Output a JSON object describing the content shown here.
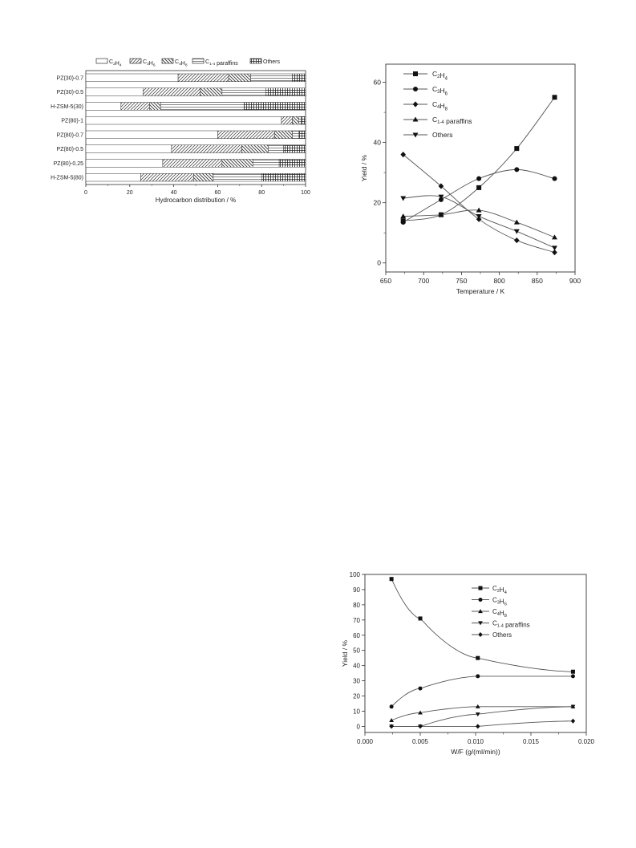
{
  "chart_data": [
    {
      "type": "bar",
      "stacked": true,
      "orientation": "horizontal",
      "categories": [
        "PZ(30)-0.7",
        "PZ(30)-0.5",
        "H-ZSM-5(30)",
        "PZ(80)-1",
        "PZ(80)-0.7",
        "PZ(80)-0.5",
        "PZ(80)-0.25",
        "H-ZSM-5(80)"
      ],
      "series": [
        {
          "name": "C2H4",
          "values": [
            42,
            26,
            16,
            89,
            60,
            39,
            35,
            25
          ]
        },
        {
          "name": "C3H6",
          "values": [
            23,
            26,
            13,
            5,
            26,
            32,
            27,
            24
          ]
        },
        {
          "name": "C4H8",
          "values": [
            10,
            10,
            5,
            3,
            8,
            12,
            14,
            9
          ]
        },
        {
          "name": "C1-4 paraffins",
          "values": [
            19,
            20,
            38,
            1,
            3,
            7,
            12,
            22
          ]
        },
        {
          "name": "Others",
          "values": [
            6,
            18,
            28,
            2,
            3,
            10,
            12,
            20
          ]
        }
      ],
      "legend_labels": [
        {
          "main": "C",
          "sub": "2",
          "mid": "H",
          "sub2": "4"
        },
        {
          "main": "C",
          "sub": "3",
          "mid": "H",
          "sub2": "6"
        },
        {
          "main": "C",
          "sub": "4",
          "mid": "H",
          "sub2": "8"
        },
        {
          "main": "C",
          "sub": "1-4",
          "mid": " paraffins",
          "sub2": ""
        },
        {
          "main": "Others",
          "sub": "",
          "mid": "",
          "sub2": ""
        }
      ],
      "xlabel": "Hydrocarbon  distribution / %",
      "xlim": [
        0,
        100
      ],
      "xticks": [
        "0",
        "20",
        "40",
        "60",
        "80",
        "100"
      ],
      "legend_position": "top"
    },
    {
      "type": "line",
      "x": [
        673,
        723,
        773,
        823,
        873
      ],
      "series": [
        {
          "name": "C2H4",
          "marker": "square",
          "values": [
            14,
            16,
            25,
            38,
            55
          ]
        },
        {
          "name": "C3H6",
          "marker": "circle",
          "values": [
            13.5,
            21,
            28,
            31,
            28
          ]
        },
        {
          "name": "C4H8",
          "marker": "diamond",
          "values": [
            36,
            25.5,
            14.5,
            7.5,
            3.5
          ]
        },
        {
          "name": "C1-4 paraffins",
          "marker": "triangle-up",
          "values": [
            15.5,
            16,
            17.5,
            13.5,
            8.5
          ]
        },
        {
          "name": "Others",
          "marker": "triangle-down",
          "values": [
            21.5,
            22,
            15.5,
            10.5,
            5
          ]
        }
      ],
      "legend_labels": [
        {
          "main": "C",
          "sub": "2",
          "mid": "H",
          "sub2": "4"
        },
        {
          "main": "C",
          "sub": "3",
          "mid": "H",
          "sub2": "6"
        },
        {
          "main": "C",
          "sub": "4",
          "mid": "H",
          "sub2": "8"
        },
        {
          "main": "C",
          "sub": "1-4",
          "mid": " paraffins",
          "sub2": ""
        },
        {
          "main": "Others",
          "sub": "",
          "mid": "",
          "sub2": ""
        }
      ],
      "xlabel": "Temperature / K",
      "ylabel": "Yield / %",
      "xlim": [
        650,
        900
      ],
      "ylim": [
        -3,
        66
      ],
      "xticks": [
        "650",
        "700",
        "750",
        "800",
        "850",
        "900"
      ],
      "yticks": [
        "0",
        "20",
        "40",
        "60"
      ],
      "legend_position": "top-left"
    },
    {
      "type": "scatter",
      "x": [
        0.0024,
        0.005,
        0.0102,
        0.0188
      ],
      "series": [
        {
          "name": "C2H4",
          "marker": "square",
          "values": [
            97,
            71,
            45,
            36
          ]
        },
        {
          "name": "C3H6",
          "marker": "circle",
          "values": [
            13,
            25,
            33,
            33
          ]
        },
        {
          "name": "C4H8",
          "marker": "triangle-up",
          "values": [
            4,
            9,
            13,
            13
          ]
        },
        {
          "name": "C1-4 paraffins",
          "marker": "triangle-down",
          "values": [
            0,
            0,
            8,
            13
          ]
        },
        {
          "name": "Others",
          "marker": "diamond",
          "values": [
            0,
            0,
            0,
            3.5
          ]
        }
      ],
      "legend_labels": [
        {
          "main": "C",
          "sub": "2",
          "mid": "H",
          "sub2": "4"
        },
        {
          "main": "C",
          "sub": "3",
          "mid": "H",
          "sub2": "6"
        },
        {
          "main": "C",
          "sub": "4",
          "mid": "H",
          "sub2": "8"
        },
        {
          "main": "C",
          "sub": "1-4",
          "mid": " paraffins",
          "sub2": ""
        },
        {
          "main": "Others",
          "sub": "",
          "mid": "",
          "sub2": ""
        }
      ],
      "xlabel": "W/F (g/(ml/min))",
      "ylabel": "Yield / %",
      "xlim": [
        0,
        0.02
      ],
      "ylim": [
        -4,
        100
      ],
      "xticks": [
        "0.000",
        "0.005",
        "0.010",
        "0.015",
        "0.020"
      ],
      "yticks": [
        "0",
        "10",
        "20",
        "30",
        "40",
        "50",
        "60",
        "70",
        "80",
        "90",
        "100"
      ],
      "legend_position": "top-right"
    }
  ]
}
